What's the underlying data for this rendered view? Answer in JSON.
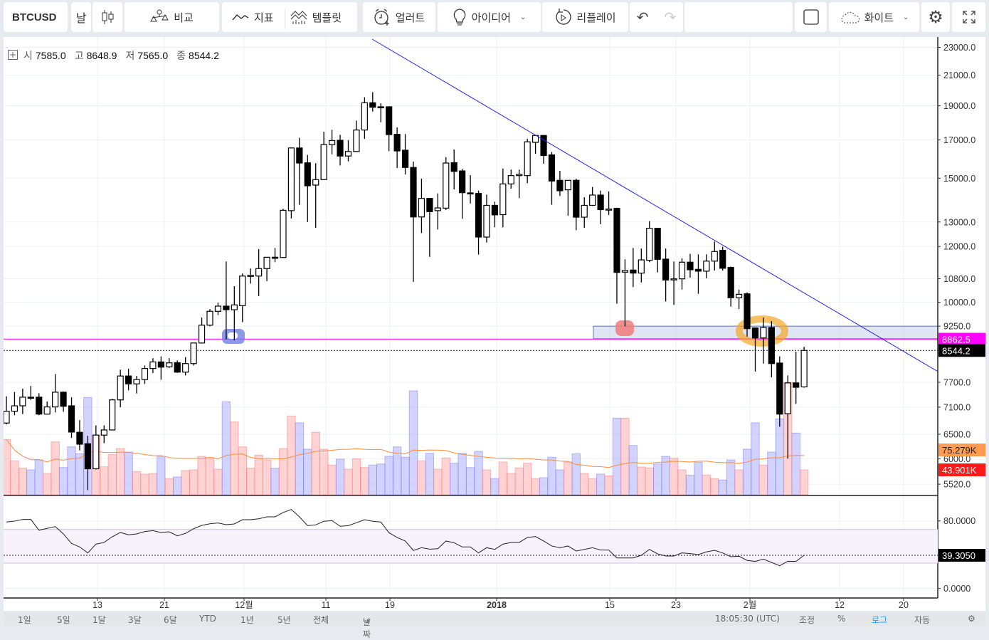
{
  "toolbar": {
    "symbol": "BTCUSD",
    "interval": "날",
    "chart_type_icon": "candlestick-icon",
    "compare": "비교",
    "indicators": "지표",
    "templates": "템플릿",
    "alert": "얼러트",
    "ideas": "아이디어",
    "replay": "리플레이",
    "theme": "화이트"
  },
  "legend": {
    "open_label": "시",
    "open": "7585.0",
    "high_label": "고",
    "high": "8648.9",
    "low_label": "저",
    "low": "7565.0",
    "close_label": "종",
    "close": "8544.2"
  },
  "colors": {
    "up_body": "#ffffff",
    "down_body": "#000000",
    "volume_up": "#ff9e9e",
    "volume_down": "#9e9eff",
    "volume_ma": "#ff8c3a",
    "trendline": "#2020ee",
    "hline": "#ff33ff",
    "rsi_band": "#f8f2fd"
  },
  "chart_data": {
    "type": "candlestick",
    "symbol": "BTCUSD",
    "price_scale": "log",
    "x_tick_labels": [
      "13",
      "21",
      "12월",
      "11",
      "19",
      "2018",
      "15",
      "23",
      "2월",
      "12",
      "20"
    ],
    "price_tick_labels": [
      "23000.0",
      "21000.0",
      "19000.0",
      "17000.0",
      "15000.0",
      "13000.0",
      "12000.0",
      "10800.0",
      "10000.0",
      "9250.0",
      "7700.0",
      "7100.0",
      "6500.0",
      "6000.0",
      "5520.0"
    ],
    "ohlc": [
      [
        6740,
        7355,
        6710,
        7005
      ],
      [
        7005,
        7460,
        6915,
        7130
      ],
      [
        7130,
        7540,
        6940,
        7335
      ],
      [
        7335,
        7610,
        7270,
        7330
      ],
      [
        7335,
        7430,
        6915,
        6940
      ],
      [
        6940,
        7230,
        6930,
        7105
      ],
      [
        7105,
        7910,
        6980,
        7455
      ],
      [
        7455,
        7470,
        6995,
        7120
      ],
      [
        7130,
        7330,
        6420,
        6545
      ],
      [
        6540,
        6805,
        6165,
        6290
      ],
      [
        6300,
        6465,
        5415,
        5805
      ],
      [
        5805,
        6690,
        5790,
        6480
      ],
      [
        6480,
        6690,
        6310,
        6590
      ],
      [
        6590,
        7300,
        6580,
        7270
      ],
      [
        7270,
        8025,
        7095,
        7860
      ],
      [
        7860,
        8045,
        7500,
        7660
      ],
      [
        7660,
        7860,
        7425,
        7770
      ],
      [
        7770,
        8135,
        7660,
        8055
      ],
      [
        8055,
        8330,
        7935,
        8230
      ],
      [
        8230,
        8380,
        7765,
        8090
      ],
      [
        8100,
        8330,
        8070,
        8205
      ],
      [
        8210,
        8270,
        7940,
        7960
      ],
      [
        7960,
        8360,
        7875,
        8185
      ],
      [
        8185,
        8760,
        8135,
        8755
      ],
      [
        8755,
        9515,
        8740,
        9280
      ],
      [
        9280,
        9780,
        9245,
        9710
      ],
      [
        9710,
        9990,
        9590,
        9875
      ],
      [
        9875,
        11425,
        8860,
        9760
      ],
      [
        9760,
        10540,
        8830,
        9915
      ],
      [
        9890,
        10985,
        9370,
        10895
      ],
      [
        10905,
        11165,
        10630,
        10920
      ],
      [
        10895,
        11895,
        10205,
        11165
      ],
      [
        11165,
        11590,
        10715,
        11585
      ],
      [
        11585,
        11940,
        11400,
        11580
      ],
      [
        11575,
        13570,
        11560,
        13505
      ],
      [
        13490,
        16580,
        13150,
        16555
      ],
      [
        16555,
        17115,
        13750,
        15760
      ],
      [
        15770,
        16185,
        13000,
        14630
      ],
      [
        14665,
        15750,
        12755,
        14930
      ],
      [
        14930,
        17455,
        14900,
        16740
      ],
      [
        16740,
        17565,
        16220,
        16960
      ],
      [
        16975,
        17285,
        15635,
        16125
      ],
      [
        16125,
        16985,
        15850,
        16365
      ],
      [
        16365,
        18105,
        16340,
        17555
      ],
      [
        17555,
        19540,
        17055,
        19190
      ],
      [
        19190,
        19870,
        18645,
        18910
      ],
      [
        18940,
        19160,
        18005,
        18920
      ],
      [
        18940,
        18970,
        16380,
        17295
      ],
      [
        17310,
        17705,
        15505,
        16395
      ],
      [
        16435,
        17325,
        15185,
        15535
      ],
      [
        15535,
        15835,
        10690,
        13215
      ],
      [
        13215,
        14975,
        12540,
        14040
      ],
      [
        14040,
        14060,
        11600,
        13445
      ],
      [
        13490,
        14270,
        12685,
        13610
      ],
      [
        13600,
        16065,
        13520,
        15760
      ],
      [
        15780,
        16470,
        14460,
        15335
      ],
      [
        15360,
        15460,
        13135,
        14305
      ],
      [
        14295,
        15150,
        13810,
        14280
      ],
      [
        14270,
        14405,
        11685,
        12375
      ],
      [
        12375,
        14215,
        12155,
        13725
      ],
      [
        13725,
        13890,
        12775,
        13305
      ],
      [
        13315,
        15480,
        12775,
        14720
      ],
      [
        14720,
        15425,
        14495,
        15125
      ],
      [
        15125,
        15425,
        14055,
        15185
      ],
      [
        15125,
        17055,
        14755,
        16890
      ],
      [
        16860,
        17270,
        16245,
        17245
      ],
      [
        17245,
        17270,
        15725,
        16150
      ],
      [
        16185,
        16340,
        13750,
        14860
      ],
      [
        14895,
        15360,
        14150,
        14395
      ],
      [
        14440,
        14900,
        13265,
        14895
      ],
      [
        14895,
        14975,
        12655,
        13205
      ],
      [
        13205,
        14095,
        12755,
        13725
      ],
      [
        13725,
        14575,
        13700,
        14195
      ],
      [
        14195,
        14405,
        12905,
        13535
      ],
      [
        13535,
        14360,
        13300,
        13560
      ],
      [
        13590,
        13620,
        9955,
        11025
      ],
      [
        11035,
        11505,
        9245,
        11095
      ],
      [
        11110,
        11940,
        10510,
        11000
      ],
      [
        11000,
        11920,
        10670,
        11485
      ],
      [
        11470,
        13035,
        11400,
        12735
      ],
      [
        12735,
        12750,
        11025,
        11505
      ],
      [
        11515,
        11920,
        10030,
        10755
      ],
      [
        10780,
        11425,
        9915,
        10795
      ],
      [
        10795,
        11545,
        10425,
        11400
      ],
      [
        11400,
        11715,
        10840,
        11120
      ],
      [
        11135,
        11695,
        10280,
        11070
      ],
      [
        11070,
        11695,
        10815,
        11440
      ],
      [
        11440,
        12195,
        11095,
        11805
      ],
      [
        11850,
        11985,
        11095,
        11175
      ],
      [
        11205,
        11240,
        9860,
        10150
      ],
      [
        10150,
        10425,
        9780,
        10265
      ],
      [
        10280,
        10330,
        8940,
        9175
      ],
      [
        9195,
        9210,
        7975,
        8900
      ],
      [
        8900,
        9515,
        8185,
        9210
      ],
      [
        9210,
        9405,
        7825,
        8185
      ],
      [
        8200,
        8380,
        6660,
        6940
      ],
      [
        6950,
        7875,
        6000,
        7685
      ],
      [
        7685,
        8510,
        7175,
        7575
      ],
      [
        7585.0,
        8648.9,
        7565.0,
        8544.2
      ]
    ],
    "volume_k": [
      97.4,
      59.8,
      46.8,
      43.9,
      61.4,
      37.6,
      93.2,
      48.0,
      84.4,
      72.3,
      171.4,
      105.3,
      49.3,
      70.6,
      81.5,
      75.2,
      41.0,
      36.4,
      37.6,
      67.7,
      28.5,
      31.4,
      42.6,
      43.9,
      67.7,
      65.6,
      45.1,
      163.9,
      128.3,
      84.4,
      46.8,
      69.8,
      61.8,
      46.8,
      81.5,
      138.8,
      126.7,
      80.3,
      110.0,
      80.3,
      52.3,
      62.7,
      45.1,
      63.6,
      48.0,
      52.3,
      54.3,
      67.7,
      84.4,
      66.1,
      183.1,
      59.8,
      73.1,
      45.1,
      64.8,
      55.6,
      73.1,
      48.0,
      76.5,
      43.9,
      28.5,
      57.7,
      37.6,
      47.3,
      55.6,
      28.5,
      30.1,
      66.1,
      43.9,
      57.7,
      72.3,
      37.6,
      28.5,
      36.4,
      33.4,
      135.0,
      135.0,
      86.9,
      48.9,
      47.3,
      54.3,
      67.7,
      64.8,
      43.9,
      34.7,
      57.3,
      34.7,
      28.5,
      26.0,
      61.4,
      43.9,
      80.3,
      126.7,
      52.3,
      75.2,
      133.8,
      198.0,
      108.7,
      43.901
    ],
    "volume_ma_label": "75.279K",
    "volume_last_label": "43.901K",
    "hline_price": 8862.5,
    "hline_label": "8862.5",
    "last_price": 8544.2,
    "last_price_label": "8544.2",
    "zone": {
      "top": 9250,
      "bottom": 8880
    },
    "rsi": {
      "values": [
        78.7,
        79.7,
        81.7,
        81.7,
        69.0,
        71.1,
        73.3,
        64.6,
        53.4,
        49.2,
        42.1,
        52.5,
        54.5,
        61.2,
        66.3,
        63.5,
        64.6,
        67.4,
        68.5,
        66.3,
        67.1,
        62.3,
        65.2,
        70.7,
        74.7,
        76.6,
        77.5,
        75.5,
        76.4,
        81.4,
        81.4,
        82.5,
        84.8,
        84.8,
        89.9,
        93.5,
        84.8,
        74.4,
        75.3,
        79.5,
        80.3,
        73.6,
        74.4,
        77.8,
        81.4,
        79.5,
        78.7,
        66.0,
        60.4,
        56.2,
        45.0,
        48.3,
        46.6,
        47.1,
        56.2,
        54.2,
        49.2,
        49.2,
        42.1,
        48.3,
        46.3,
        52.5,
        54.5,
        54.5,
        60.4,
        61.5,
        56.2,
        50.3,
        48.3,
        50.3,
        44.4,
        46.3,
        48.3,
        45.5,
        45.5,
        36.2,
        36.2,
        36.2,
        39.3,
        46.3,
        41.0,
        38.5,
        38.5,
        42.1,
        41.3,
        40.2,
        43.3,
        45.2,
        42.1,
        37.6,
        38.2,
        33.2,
        32.1,
        34.8,
        30.9,
        26.9,
        32.3,
        32.1,
        39.305
      ],
      "upper_band": 70,
      "lower_band": 30,
      "tick_labels": [
        "80.0000",
        "0.0000"
      ],
      "last_label": "39.3050"
    }
  },
  "bottom_bar": {
    "ranges": [
      "1일",
      "5일",
      "1달",
      "3달",
      "6달",
      "YTD",
      "1년",
      "5년",
      "전체"
    ],
    "goto_date": "날짜",
    "time": "18:05:30 (UTC)",
    "adjust": "조정",
    "percent": "%",
    "log": "로그",
    "auto": "자동"
  }
}
